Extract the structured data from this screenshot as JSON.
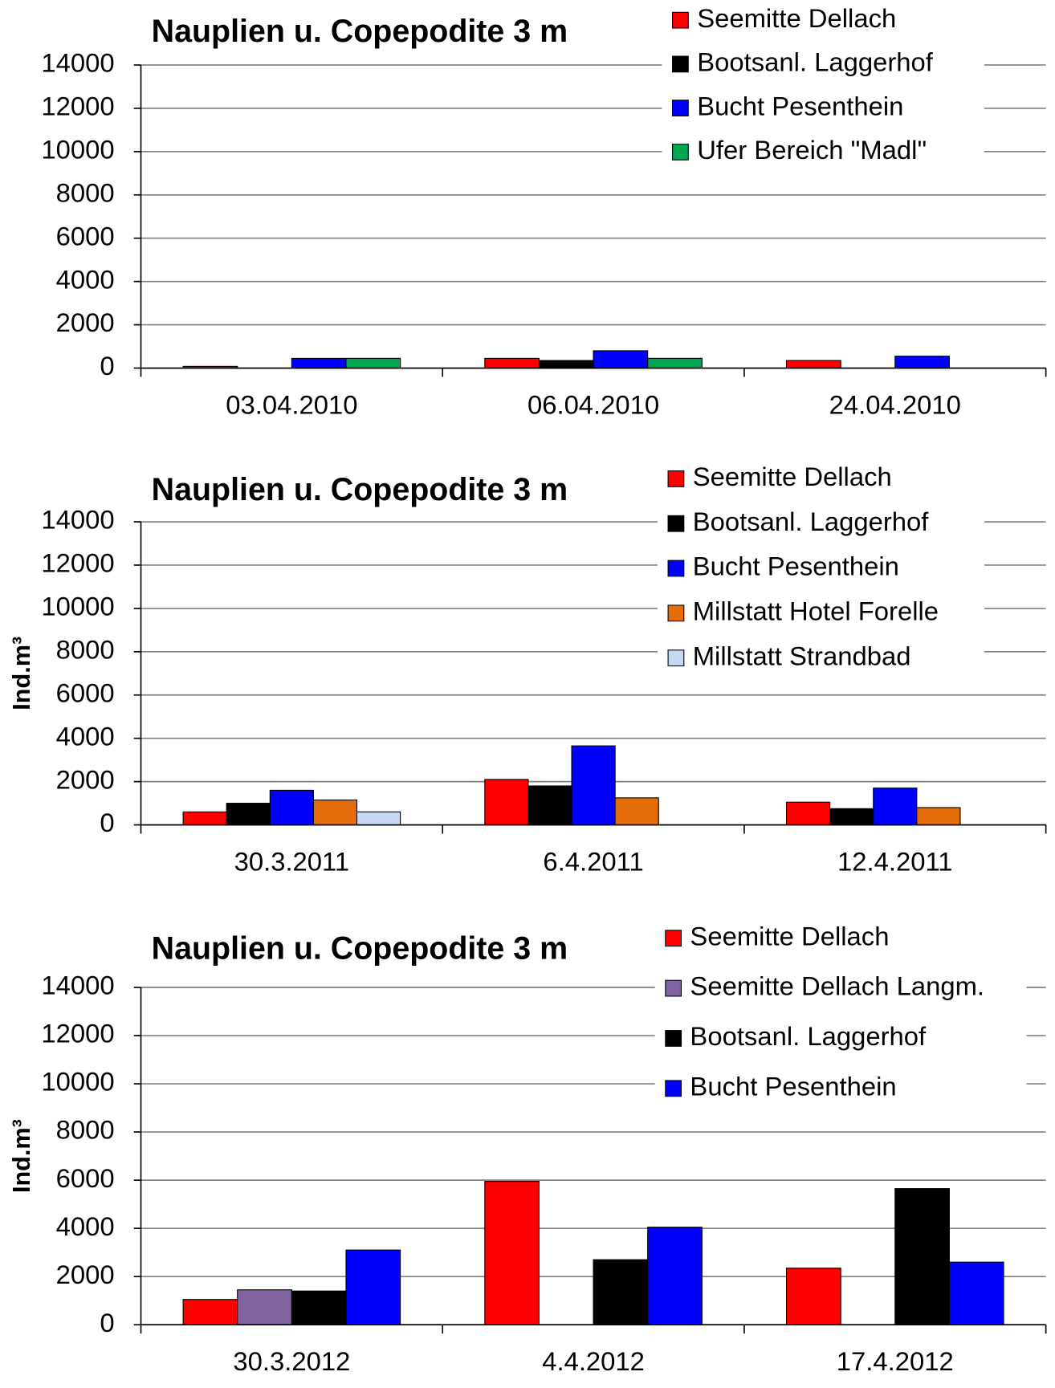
{
  "chart_data": [
    {
      "type": "bar",
      "title": "Nauplien u. Copepodite 3 m",
      "categories": [
        "03.04.2010",
        "06.04.2010",
        "24.04.2010"
      ],
      "series": [
        {
          "name": "Seemitte Dellach",
          "color": "#ff0000",
          "values": [
            80,
            450,
            350
          ]
        },
        {
          "name": "Bootsanl. Laggerhof",
          "color": "#000000",
          "values": [
            0,
            350,
            0
          ]
        },
        {
          "name": "Bucht Pesenthein",
          "color": "#0000ff",
          "values": [
            450,
            800,
            550
          ]
        },
        {
          "name": "Ufer Bereich \"Madl\"",
          "color": "#00a651",
          "values": [
            450,
            450,
            0
          ]
        }
      ],
      "ylim": [
        0,
        14000
      ],
      "yticks": [
        0,
        2000,
        4000,
        6000,
        8000,
        10000,
        12000,
        14000
      ],
      "grid": true,
      "legend": "top-right"
    },
    {
      "type": "bar",
      "title": "Nauplien u. Copepodite 3 m",
      "ylabel": "Ind.m³",
      "categories": [
        "30.3.2011",
        "6.4.2011",
        "12.4.2011"
      ],
      "series": [
        {
          "name": "Seemitte Dellach",
          "color": "#ff0000",
          "values": [
            600,
            2100,
            1050
          ]
        },
        {
          "name": "Bootsanl. Laggerhof",
          "color": "#000000",
          "values": [
            1000,
            1800,
            750
          ]
        },
        {
          "name": "Bucht Pesenthein",
          "color": "#0000ff",
          "values": [
            1600,
            3650,
            1700
          ]
        },
        {
          "name": "Millstatt Hotel Forelle",
          "color": "#e46c0a",
          "values": [
            1150,
            1250,
            800
          ]
        },
        {
          "name": "Millstatt Strandbad",
          "color": "#c6d9f1",
          "values": [
            600,
            0,
            0
          ]
        }
      ],
      "ylim": [
        0,
        14000
      ],
      "yticks": [
        0,
        2000,
        4000,
        6000,
        8000,
        10000,
        12000,
        14000
      ],
      "grid": true,
      "legend": "top-right"
    },
    {
      "type": "bar",
      "title": "Nauplien u. Copepodite 3 m",
      "ylabel": "Ind.m³",
      "categories": [
        "30.3.2012",
        "4.4.2012",
        "17.4.2012"
      ],
      "series": [
        {
          "name": "Seemitte Dellach",
          "color": "#ff0000",
          "values": [
            1050,
            5950,
            2350
          ]
        },
        {
          "name": "Seemitte Dellach Langm.",
          "color": "#8064a2",
          "values": [
            1450,
            0,
            0
          ]
        },
        {
          "name": "Bootsanl. Laggerhof",
          "color": "#000000",
          "values": [
            1400,
            2700,
            5650
          ]
        },
        {
          "name": "Bucht Pesenthein",
          "color": "#0000ff",
          "values": [
            3100,
            4050,
            2600
          ]
        }
      ],
      "ylim": [
        0,
        14000
      ],
      "yticks": [
        0,
        2000,
        4000,
        6000,
        8000,
        10000,
        12000,
        14000
      ],
      "grid": true,
      "legend": "top-right"
    }
  ]
}
